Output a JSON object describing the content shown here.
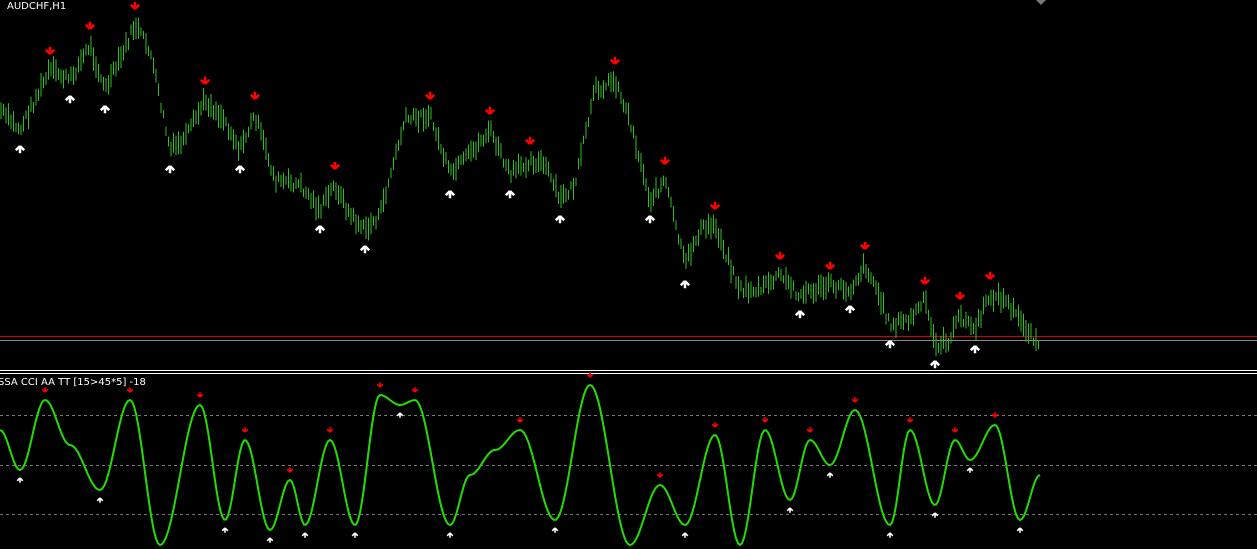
{
  "price_window": {
    "title": "AUDCHF,H1"
  },
  "indicator_window": {
    "title": "SSA CCI AA TT [15>45*5]  -18"
  }
}
